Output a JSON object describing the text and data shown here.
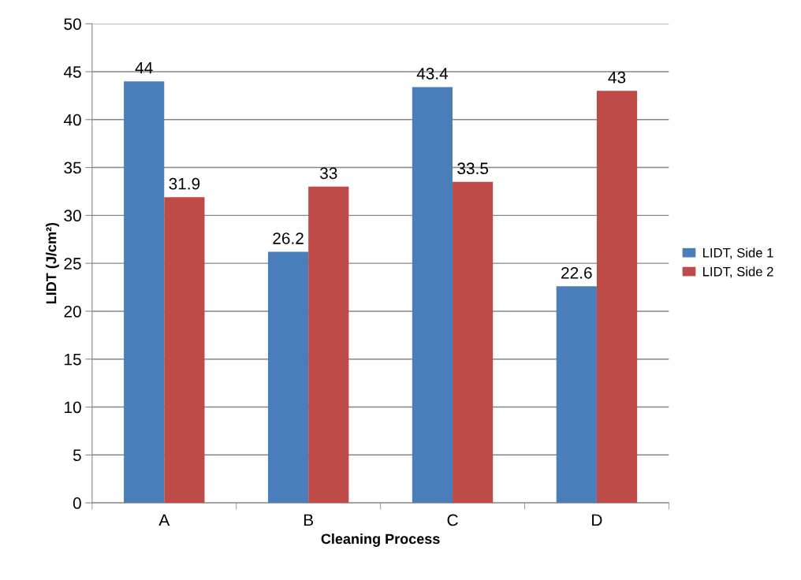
{
  "chart_data": {
    "type": "bar",
    "xlabel": "Cleaning Process",
    "ylabel": "LIDT (J/cm²)",
    "categories": [
      "A",
      "B",
      "C",
      "D"
    ],
    "series": [
      {
        "name": "LIDT, Side 1",
        "color": "#4a7ebb",
        "values": [
          44,
          26.2,
          43.4,
          22.6
        ]
      },
      {
        "name": "LIDT, Side 2",
        "color": "#be4b48",
        "values": [
          31.9,
          33,
          33.5,
          43
        ]
      }
    ],
    "ylim": [
      0,
      50
    ],
    "yticks": [
      0,
      5,
      10,
      15,
      20,
      25,
      30,
      35,
      40,
      45,
      50
    ],
    "grid": "y",
    "legend": "right",
    "data_labels": true
  }
}
